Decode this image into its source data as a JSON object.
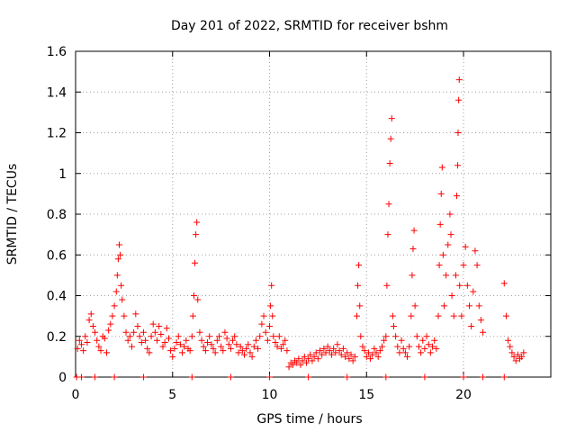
{
  "chart_data": {
    "type": "scatter",
    "title": "Day 201 of 2022, SRMTID for receiver bshm",
    "xlabel": "GPS time / hours",
    "ylabel": "SRMTID / TECUs",
    "xlim": [
      0,
      24.5
    ],
    "ylim": [
      0,
      1.6
    ],
    "x_ticks": [
      0,
      5,
      10,
      15,
      20
    ],
    "y_ticks": [
      0,
      0.2,
      0.4,
      0.6,
      0.8,
      1,
      1.2,
      1.4,
      1.6
    ],
    "x_tick_labels": [
      "0",
      "5",
      "10",
      "15",
      "20"
    ],
    "y_tick_labels": [
      "0",
      "0.2",
      "0.4",
      "0.6",
      "0.8",
      "1",
      "1.2",
      "1.4",
      "1.6"
    ],
    "grid": true,
    "marker": "+",
    "marker_color": "#ff0000",
    "series": [
      {
        "name": "SRMTID",
        "points": [
          [
            0.05,
            0.0
          ],
          [
            0.1,
            0.14
          ],
          [
            0.2,
            0.18
          ],
          [
            0.3,
            0.16
          ],
          [
            0.4,
            0.13
          ],
          [
            0.5,
            0.2
          ],
          [
            0.6,
            0.17
          ],
          [
            0.7,
            0.28
          ],
          [
            0.8,
            0.31
          ],
          [
            0.9,
            0.25
          ],
          [
            1.0,
            0.22
          ],
          [
            1.1,
            0.18
          ],
          [
            1.2,
            0.15
          ],
          [
            1.3,
            0.13
          ],
          [
            1.4,
            0.2
          ],
          [
            1.5,
            0.19
          ],
          [
            1.6,
            0.12
          ],
          [
            1.7,
            0.23
          ],
          [
            1.8,
            0.26
          ],
          [
            1.9,
            0.3
          ],
          [
            2.0,
            0.35
          ],
          [
            2.1,
            0.42
          ],
          [
            2.15,
            0.5
          ],
          [
            2.2,
            0.58
          ],
          [
            2.25,
            0.65
          ],
          [
            2.3,
            0.6
          ],
          [
            2.35,
            0.45
          ],
          [
            2.4,
            0.38
          ],
          [
            2.5,
            0.3
          ],
          [
            2.6,
            0.22
          ],
          [
            2.7,
            0.18
          ],
          [
            2.8,
            0.2
          ],
          [
            2.9,
            0.15
          ],
          [
            3.0,
            0.22
          ],
          [
            3.1,
            0.31
          ],
          [
            3.2,
            0.25
          ],
          [
            3.3,
            0.2
          ],
          [
            3.4,
            0.17
          ],
          [
            3.5,
            0.22
          ],
          [
            3.6,
            0.18
          ],
          [
            3.7,
            0.14
          ],
          [
            3.8,
            0.12
          ],
          [
            3.9,
            0.2
          ],
          [
            4.0,
            0.26
          ],
          [
            4.1,
            0.22
          ],
          [
            4.2,
            0.18
          ],
          [
            4.3,
            0.25
          ],
          [
            4.4,
            0.21
          ],
          [
            4.5,
            0.15
          ],
          [
            4.6,
            0.17
          ],
          [
            4.7,
            0.24
          ],
          [
            4.8,
            0.19
          ],
          [
            4.9,
            0.13
          ],
          [
            5.0,
            0.1
          ],
          [
            5.1,
            0.14
          ],
          [
            5.2,
            0.17
          ],
          [
            5.3,
            0.2
          ],
          [
            5.4,
            0.16
          ],
          [
            5.5,
            0.12
          ],
          [
            5.6,
            0.15
          ],
          [
            5.7,
            0.18
          ],
          [
            5.8,
            0.14
          ],
          [
            5.9,
            0.13
          ],
          [
            6.0,
            0.2
          ],
          [
            6.05,
            0.3
          ],
          [
            6.1,
            0.4
          ],
          [
            6.15,
            0.56
          ],
          [
            6.2,
            0.7
          ],
          [
            6.25,
            0.76
          ],
          [
            6.3,
            0.38
          ],
          [
            6.4,
            0.22
          ],
          [
            6.5,
            0.18
          ],
          [
            6.6,
            0.15
          ],
          [
            6.7,
            0.13
          ],
          [
            6.8,
            0.17
          ],
          [
            6.9,
            0.2
          ],
          [
            7.0,
            0.16
          ],
          [
            7.1,
            0.14
          ],
          [
            7.2,
            0.12
          ],
          [
            7.3,
            0.18
          ],
          [
            7.4,
            0.2
          ],
          [
            7.5,
            0.15
          ],
          [
            7.6,
            0.13
          ],
          [
            7.7,
            0.22
          ],
          [
            7.8,
            0.19
          ],
          [
            7.9,
            0.16
          ],
          [
            8.0,
            0.14
          ],
          [
            8.1,
            0.18
          ],
          [
            8.2,
            0.2
          ],
          [
            8.3,
            0.16
          ],
          [
            8.4,
            0.12
          ],
          [
            8.5,
            0.15
          ],
          [
            8.6,
            0.13
          ],
          [
            8.7,
            0.11
          ],
          [
            8.8,
            0.14
          ],
          [
            8.9,
            0.16
          ],
          [
            9.0,
            0.12
          ],
          [
            9.1,
            0.1
          ],
          [
            9.2,
            0.15
          ],
          [
            9.3,
            0.18
          ],
          [
            9.4,
            0.14
          ],
          [
            9.5,
            0.2
          ],
          [
            9.6,
            0.26
          ],
          [
            9.7,
            0.3
          ],
          [
            9.8,
            0.22
          ],
          [
            9.9,
            0.18
          ],
          [
            10.0,
            0.25
          ],
          [
            10.05,
            0.35
          ],
          [
            10.1,
            0.45
          ],
          [
            10.15,
            0.3
          ],
          [
            10.2,
            0.2
          ],
          [
            10.3,
            0.17
          ],
          [
            10.4,
            0.15
          ],
          [
            10.5,
            0.2
          ],
          [
            10.6,
            0.14
          ],
          [
            10.7,
            0.16
          ],
          [
            10.8,
            0.18
          ],
          [
            10.9,
            0.13
          ],
          [
            11.0,
            0.05
          ],
          [
            11.1,
            0.07
          ],
          [
            11.2,
            0.06
          ],
          [
            11.3,
            0.08
          ],
          [
            11.4,
            0.07
          ],
          [
            11.5,
            0.09
          ],
          [
            11.6,
            0.06
          ],
          [
            11.7,
            0.08
          ],
          [
            11.8,
            0.1
          ],
          [
            11.9,
            0.07
          ],
          [
            12.0,
            0.09
          ],
          [
            12.1,
            0.11
          ],
          [
            12.2,
            0.08
          ],
          [
            12.3,
            0.1
          ],
          [
            12.4,
            0.12
          ],
          [
            12.5,
            0.09
          ],
          [
            12.6,
            0.13
          ],
          [
            12.7,
            0.11
          ],
          [
            12.8,
            0.14
          ],
          [
            12.9,
            0.12
          ],
          [
            13.0,
            0.15
          ],
          [
            13.1,
            0.13
          ],
          [
            13.2,
            0.11
          ],
          [
            13.3,
            0.14
          ],
          [
            13.4,
            0.12
          ],
          [
            13.5,
            0.16
          ],
          [
            13.6,
            0.13
          ],
          [
            13.7,
            0.11
          ],
          [
            13.8,
            0.14
          ],
          [
            13.9,
            0.1
          ],
          [
            14.0,
            0.12
          ],
          [
            14.1,
            0.09
          ],
          [
            14.2,
            0.11
          ],
          [
            14.3,
            0.08
          ],
          [
            14.4,
            0.1
          ],
          [
            14.5,
            0.3
          ],
          [
            14.55,
            0.45
          ],
          [
            14.6,
            0.55
          ],
          [
            14.65,
            0.35
          ],
          [
            14.7,
            0.2
          ],
          [
            14.8,
            0.15
          ],
          [
            14.9,
            0.13
          ],
          [
            15.0,
            0.1
          ],
          [
            15.1,
            0.12
          ],
          [
            15.2,
            0.09
          ],
          [
            15.3,
            0.11
          ],
          [
            15.4,
            0.14
          ],
          [
            15.5,
            0.12
          ],
          [
            15.6,
            0.1
          ],
          [
            15.7,
            0.13
          ],
          [
            15.8,
            0.15
          ],
          [
            15.9,
            0.18
          ],
          [
            16.0,
            0.2
          ],
          [
            16.05,
            0.45
          ],
          [
            16.1,
            0.7
          ],
          [
            16.15,
            0.85
          ],
          [
            16.2,
            1.05
          ],
          [
            16.25,
            1.17
          ],
          [
            16.3,
            1.27
          ],
          [
            16.35,
            0.3
          ],
          [
            16.4,
            0.25
          ],
          [
            16.5,
            0.2
          ],
          [
            16.6,
            0.15
          ],
          [
            16.7,
            0.12
          ],
          [
            16.8,
            0.18
          ],
          [
            16.9,
            0.14
          ],
          [
            17.0,
            0.12
          ],
          [
            17.1,
            0.1
          ],
          [
            17.2,
            0.15
          ],
          [
            17.3,
            0.3
          ],
          [
            17.35,
            0.5
          ],
          [
            17.4,
            0.63
          ],
          [
            17.45,
            0.72
          ],
          [
            17.5,
            0.35
          ],
          [
            17.6,
            0.2
          ],
          [
            17.7,
            0.15
          ],
          [
            17.8,
            0.12
          ],
          [
            17.9,
            0.18
          ],
          [
            18.0,
            0.14
          ],
          [
            18.1,
            0.2
          ],
          [
            18.2,
            0.16
          ],
          [
            18.3,
            0.12
          ],
          [
            18.4,
            0.15
          ],
          [
            18.5,
            0.18
          ],
          [
            18.6,
            0.14
          ],
          [
            18.7,
            0.3
          ],
          [
            18.75,
            0.55
          ],
          [
            18.8,
            0.75
          ],
          [
            18.85,
            0.9
          ],
          [
            18.9,
            1.03
          ],
          [
            18.95,
            0.6
          ],
          [
            19.0,
            0.35
          ],
          [
            19.1,
            0.5
          ],
          [
            19.2,
            0.65
          ],
          [
            19.3,
            0.8
          ],
          [
            19.35,
            0.7
          ],
          [
            19.4,
            0.4
          ],
          [
            19.5,
            0.3
          ],
          [
            19.6,
            0.5
          ],
          [
            19.65,
            0.89
          ],
          [
            19.7,
            1.04
          ],
          [
            19.72,
            1.2
          ],
          [
            19.75,
            1.36
          ],
          [
            19.78,
            1.46
          ],
          [
            19.8,
            0.45
          ],
          [
            19.9,
            0.3
          ],
          [
            20.0,
            0.55
          ],
          [
            20.1,
            0.64
          ],
          [
            20.2,
            0.45
          ],
          [
            20.3,
            0.35
          ],
          [
            20.4,
            0.25
          ],
          [
            20.5,
            0.42
          ],
          [
            20.6,
            0.62
          ],
          [
            20.7,
            0.55
          ],
          [
            20.8,
            0.35
          ],
          [
            20.9,
            0.28
          ],
          [
            21.0,
            0.22
          ],
          [
            22.1,
            0.46
          ],
          [
            22.2,
            0.3
          ],
          [
            22.3,
            0.18
          ],
          [
            22.4,
            0.15
          ],
          [
            22.5,
            0.12
          ],
          [
            22.6,
            0.1
          ],
          [
            22.7,
            0.08
          ],
          [
            22.8,
            0.11
          ],
          [
            22.9,
            0.09
          ],
          [
            23.0,
            0.1
          ],
          [
            23.1,
            0.12
          ],
          [
            0.3,
            0.0
          ],
          [
            1.0,
            0.0
          ],
          [
            2.0,
            0.0
          ],
          [
            3.5,
            0.0
          ],
          [
            6.0,
            0.0
          ],
          [
            8.0,
            0.0
          ],
          [
            10.0,
            0.0
          ],
          [
            12.0,
            0.0
          ],
          [
            14.0,
            0.0
          ],
          [
            16.0,
            0.0
          ],
          [
            18.0,
            0.0
          ],
          [
            20.0,
            0.0
          ],
          [
            21.0,
            0.0
          ],
          [
            22.1,
            0.0
          ]
        ]
      }
    ]
  }
}
